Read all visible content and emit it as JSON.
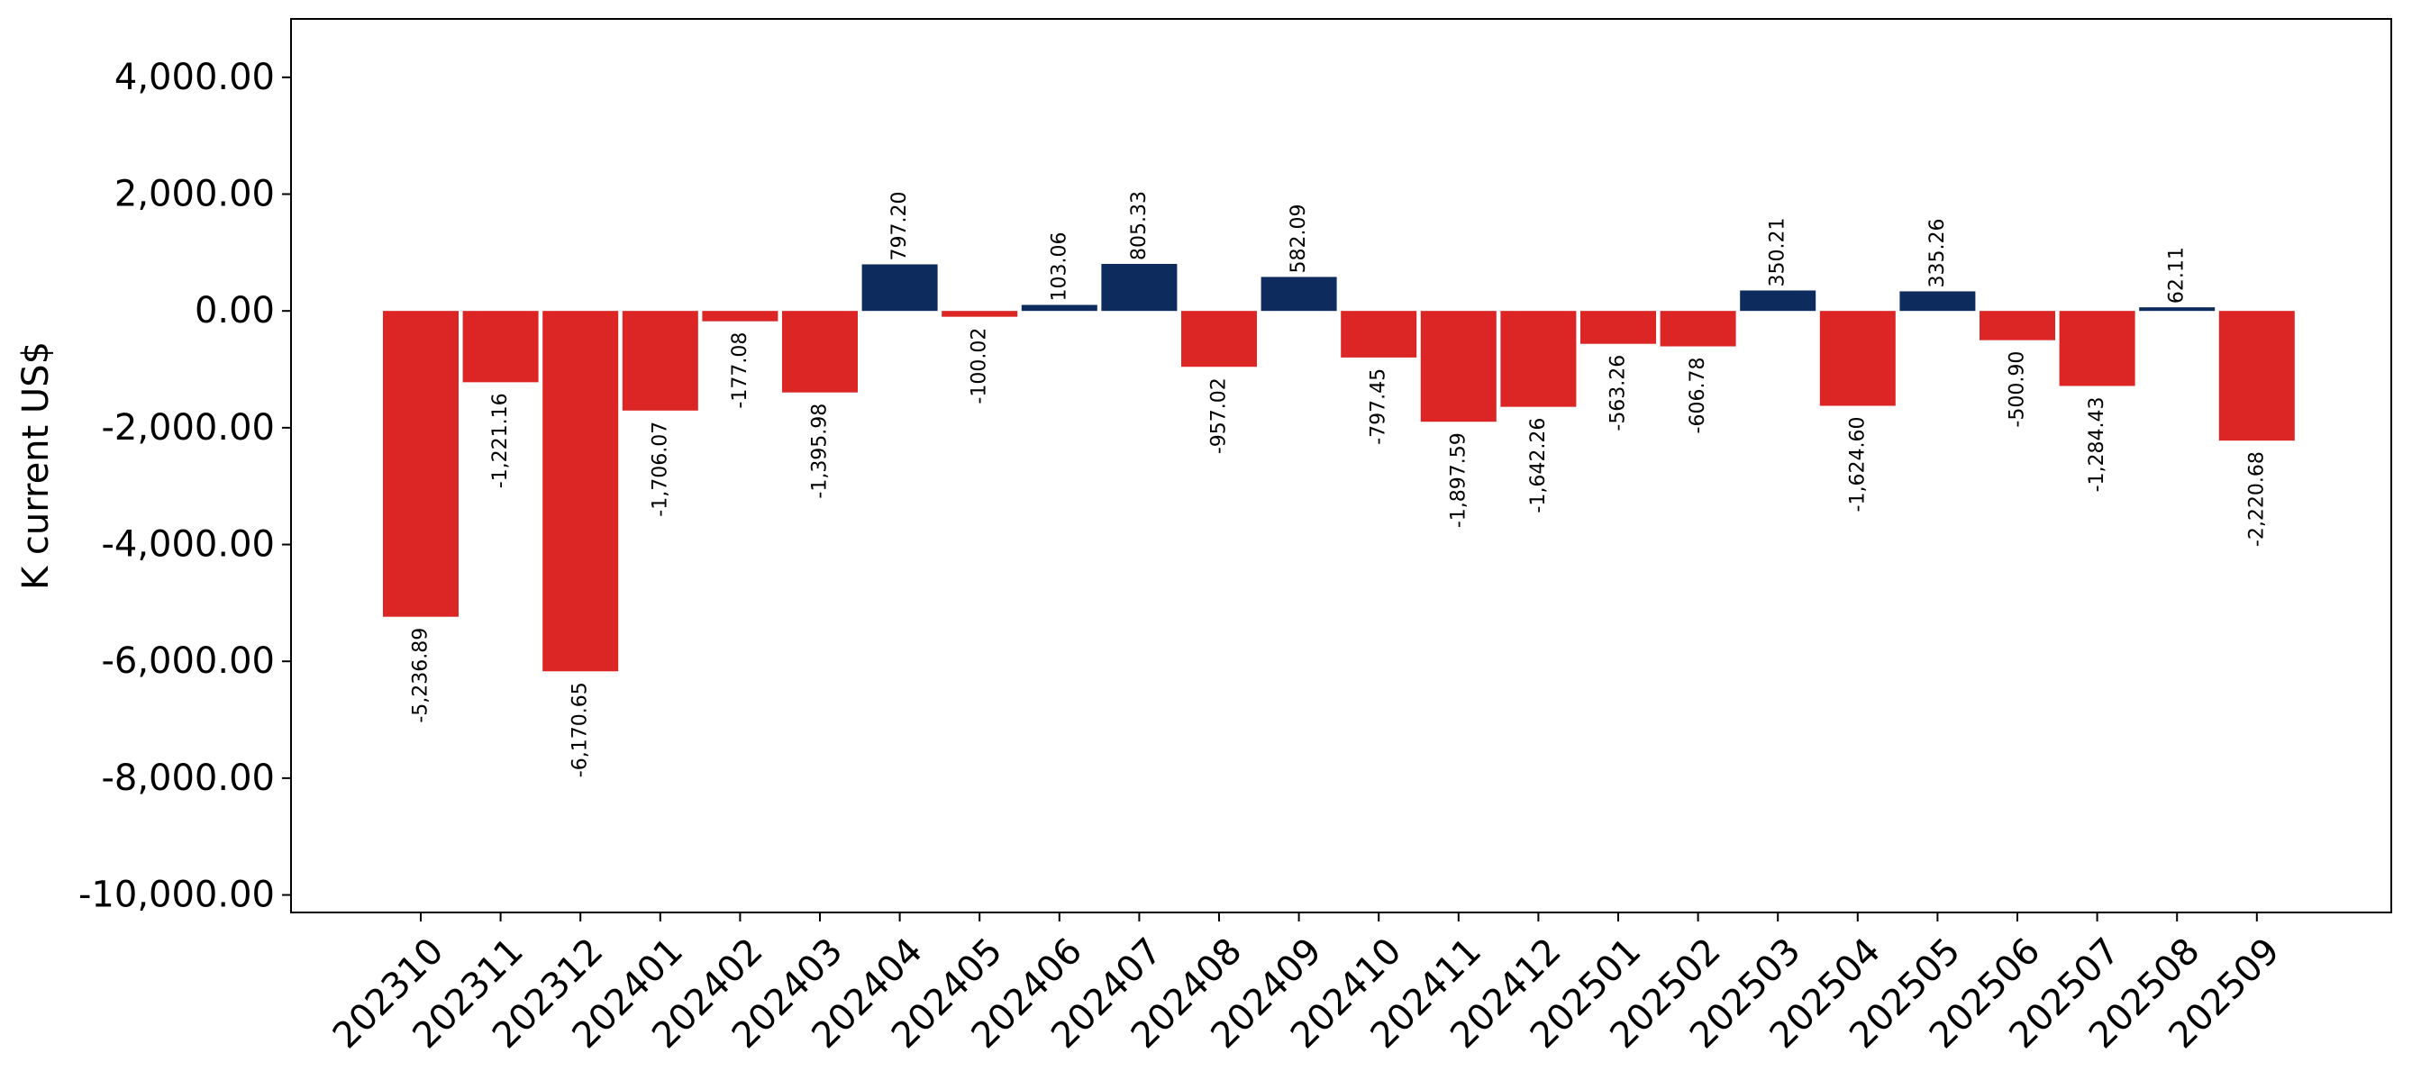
{
  "chart_data": {
    "type": "bar",
    "title": "",
    "xlabel": "",
    "ylabel": "K current US$",
    "ylim": [
      -10300,
      5000
    ],
    "yticks": [
      4000,
      2000,
      0,
      -2000,
      -4000,
      -6000,
      -8000,
      -10000
    ],
    "ytick_labels": [
      "4,000.00",
      "2,000.00",
      "0.00",
      "-2,000.00",
      "-4,000.00",
      "-6,000.00",
      "-8,000.00",
      "-10,000.00"
    ],
    "grid": false,
    "legend": "none",
    "colors": {
      "positive": "#0d2b5c",
      "negative": "#dc2626"
    },
    "categories": [
      "202310",
      "202311",
      "202312",
      "202401",
      "202402",
      "202403",
      "202404",
      "202405",
      "202406",
      "202407",
      "202408",
      "202409",
      "202410",
      "202411",
      "202412",
      "202501",
      "202502",
      "202503",
      "202504",
      "202505",
      "202506",
      "202507",
      "202508",
      "202509"
    ],
    "values": [
      -5236.89,
      -1221.16,
      -6170.65,
      -1706.07,
      -177.08,
      -1395.98,
      797.2,
      -100.02,
      103.06,
      805.33,
      -957.02,
      582.09,
      -797.45,
      -1897.59,
      -1642.26,
      -563.26,
      -606.78,
      350.21,
      -1624.6,
      335.26,
      -500.9,
      -1284.43,
      62.11,
      -2220.68
    ],
    "value_labels": [
      "-5,236.89",
      "-1,221.16",
      "-6,170.65",
      "-1,706.07",
      "-177.08",
      "-1,395.98",
      "797.20",
      "-100.02",
      "103.06",
      "805.33",
      "-957.02",
      "582.09",
      "-797.45",
      "-1,897.59",
      "-1,642.26",
      "-563.26",
      "-606.78",
      "350.21",
      "-1,624.60",
      "335.26",
      "-500.90",
      "-1,284.43",
      "62.11",
      "-2,220.68"
    ]
  }
}
